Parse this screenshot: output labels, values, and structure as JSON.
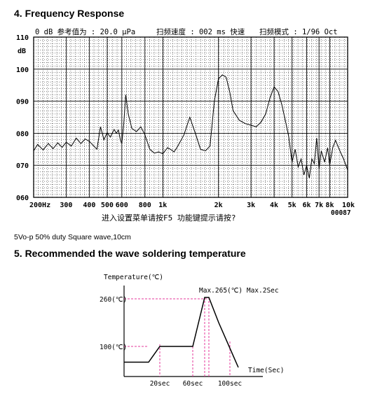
{
  "section4": {
    "heading": "4. Frequency Response"
  },
  "freq_chart": {
    "header_left": "0 dB 参考值为 : 20.0 μPa",
    "header_mid": "扫频速度 : 002 ms 快速",
    "header_right": "扫频模式 : 1/96  Oct",
    "footer_text": "进入设置菜单请按F5  功能键提示请按?",
    "y_unit": "dB",
    "counter": "00087"
  },
  "note": "5Vo-p 50% duty Square wave,10cm",
  "section5": {
    "heading": "5. Recommended the wave soldering temperature"
  },
  "solder_chart": {
    "ylabel": "Temperature(℃)",
    "xlabel": "Time(Sec)",
    "peak_label": "Max.265(℃) Max.2Sec"
  },
  "chart_data": [
    {
      "type": "line",
      "title": "",
      "xlabel": "",
      "ylabel": "dB",
      "xscale": "log",
      "grid": true,
      "xlim": [
        200,
        10000
      ],
      "ylim": [
        60,
        110
      ],
      "yticks": [
        60,
        70,
        80,
        90,
        100,
        110
      ],
      "ytick_labels": [
        "060",
        "070",
        "080",
        "090",
        "100",
        "110"
      ],
      "xticks": [
        200,
        300,
        400,
        500,
        600,
        800,
        1000,
        2000,
        3000,
        4000,
        5000,
        6000,
        7000,
        8000,
        10000
      ],
      "xtick_labels": [
        "200Hz",
        "300",
        "400",
        "500",
        "600",
        "800",
        "1k",
        "2k",
        "3k",
        "4k",
        "5k",
        "6k",
        "7k",
        "8k",
        "10k"
      ],
      "series": [
        {
          "x": [
            200,
            210,
            225,
            240,
            255,
            270,
            285,
            300,
            320,
            340,
            360,
            380,
            400,
            420,
            440,
            460,
            480,
            500,
            520,
            545,
            560,
            575,
            590,
            600,
            615,
            630,
            650,
            680,
            720,
            760,
            800,
            850,
            900,
            950,
            1000,
            1060,
            1100,
            1150,
            1200,
            1300,
            1400,
            1500,
            1600,
            1700,
            1800,
            1900,
            2000,
            2100,
            2200,
            2300,
            2400,
            2600,
            2800,
            3000,
            3200,
            3400,
            3600,
            3800,
            4000,
            4200,
            4400,
            4600,
            4800,
            5000,
            5200,
            5400,
            5600,
            5800,
            6000,
            6200,
            6400,
            6600,
            6800,
            7000,
            7200,
            7500,
            7800,
            8000,
            8300,
            8600,
            9000,
            9500,
            10000
          ],
          "y": [
            74.5,
            76.5,
            74.8,
            76.8,
            75.2,
            77.0,
            75.6,
            77.2,
            76.0,
            78.5,
            76.8,
            78.2,
            77.5,
            76.2,
            75.0,
            82.0,
            78.0,
            80.2,
            78.8,
            81.2,
            80.0,
            81.0,
            77.8,
            76.8,
            83.0,
            92.0,
            86.0,
            81.5,
            80.5,
            82.0,
            79.5,
            75.0,
            73.8,
            74.2,
            73.6,
            75.5,
            75.0,
            74.2,
            75.8,
            79.5,
            85.0,
            80.0,
            75.0,
            74.5,
            76.0,
            90.0,
            97.0,
            98.2,
            97.5,
            93.0,
            87.0,
            84.0,
            83.0,
            82.5,
            82.0,
            83.5,
            86.0,
            91.0,
            94.5,
            93.0,
            89.0,
            84.0,
            79.0,
            71.0,
            75.0,
            69.5,
            72.0,
            67.0,
            70.0,
            66.0,
            72.0,
            70.5,
            78.5,
            69.0,
            74.5,
            71.0,
            75.5,
            70.0,
            75.5,
            77.8,
            75.0,
            72.0,
            68.5
          ]
        }
      ]
    },
    {
      "type": "line",
      "title": "",
      "xlabel": "Time(Sec)",
      "ylabel": "Temperature(℃)",
      "yticks": [
        100,
        260
      ],
      "ytick_labels": [
        "100(℃)",
        "260(℃)"
      ],
      "xticks": [
        20,
        60,
        100
      ],
      "xtick_labels": [
        "20sec",
        "60sec",
        "100sec"
      ],
      "annotation": "Max.265(℃) Max.2Sec",
      "series": [
        {
          "x": [
            0,
            45,
            70,
            120,
            142,
            152,
            165,
            205
          ],
          "y": [
            55,
            55,
            100,
            100,
            265,
            265,
            180,
            40
          ]
        }
      ]
    }
  ]
}
